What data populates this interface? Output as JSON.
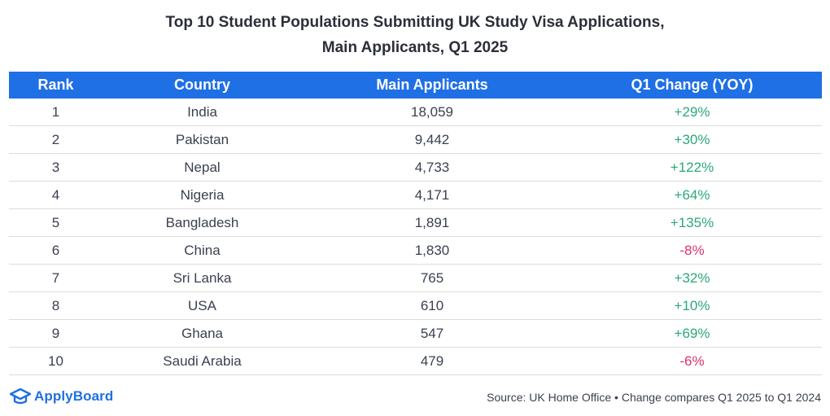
{
  "title_line1": "Top 10 Student Populations Submitting UK Study Visa Applications,",
  "title_line2": "Main Applicants, Q1 2025",
  "headers": {
    "rank": "Rank",
    "country": "Country",
    "applicants": "Main Applicants",
    "change": "Q1 Change (YOY)"
  },
  "chart_data": {
    "type": "table",
    "title": "Top 10 Student Populations Submitting UK Study Visa Applications, Main Applicants, Q1 2025",
    "columns": [
      "Rank",
      "Country",
      "Main Applicants",
      "Q1 Change (YOY)"
    ],
    "rows": [
      {
        "rank": "1",
        "country": "India",
        "applicants": "18,059",
        "change": "+29%",
        "change_value": 29
      },
      {
        "rank": "2",
        "country": "Pakistan",
        "applicants": "9,442",
        "change": "+30%",
        "change_value": 30
      },
      {
        "rank": "3",
        "country": "Nepal",
        "applicants": "4,733",
        "change": "+122%",
        "change_value": 122
      },
      {
        "rank": "4",
        "country": "Nigeria",
        "applicants": "4,171",
        "change": "+64%",
        "change_value": 64
      },
      {
        "rank": "5",
        "country": "Bangladesh",
        "applicants": "1,891",
        "change": "+135%",
        "change_value": 135
      },
      {
        "rank": "6",
        "country": "China",
        "applicants": "1,830",
        "change": "-8%",
        "change_value": -8
      },
      {
        "rank": "7",
        "country": "Sri Lanka",
        "applicants": "765",
        "change": "+32%",
        "change_value": 32
      },
      {
        "rank": "8",
        "country": "USA",
        "applicants": "610",
        "change": "+10%",
        "change_value": 10
      },
      {
        "rank": "9",
        "country": "Ghana",
        "applicants": "547",
        "change": "+69%",
        "change_value": 69
      },
      {
        "rank": "10",
        "country": "Saudi Arabia",
        "applicants": "479",
        "change": "-6%",
        "change_value": -6
      }
    ]
  },
  "colors": {
    "header_bg": "#1f6fe5",
    "positive": "#2aa876",
    "negative": "#e0306a",
    "brand": "#1f6fe5"
  },
  "brand": {
    "icon": "graduation-cap-icon",
    "name": "ApplyBoard"
  },
  "source": "Source: UK Home Office • Change compares Q1 2025 to Q1 2024"
}
